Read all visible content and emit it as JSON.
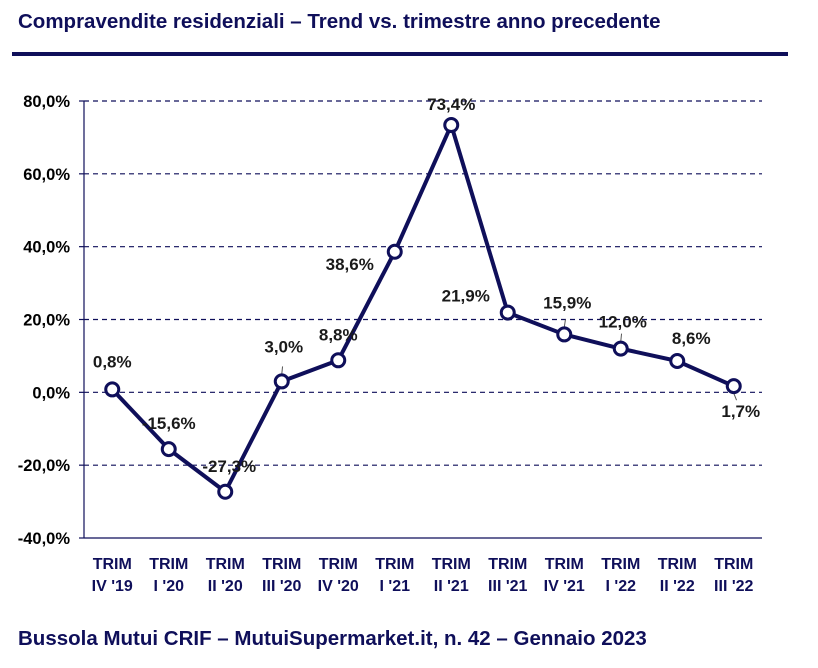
{
  "header": {
    "title": "Compravendite residenziali – Trend vs. trimestre anno precedente"
  },
  "footer": {
    "text": "Bussola Mutui CRIF – MutuiSupermarket.it, n. 42 – Gennaio 2023"
  },
  "colors": {
    "line": "#0f0f5a",
    "grid": "#0f0f5a",
    "marker_fill": "#ffffff",
    "text": "#0f0f5a"
  },
  "chart_data": {
    "type": "line",
    "title": "",
    "xlabel": "",
    "ylabel": "",
    "categories": [
      [
        "TRIM",
        "IV '19"
      ],
      [
        "TRIM",
        "I '20"
      ],
      [
        "TRIM",
        "II '20"
      ],
      [
        "TRIM",
        "III '20"
      ],
      [
        "TRIM",
        "IV '20"
      ],
      [
        "TRIM",
        "I '21"
      ],
      [
        "TRIM",
        "II '21"
      ],
      [
        "TRIM",
        "III '21"
      ],
      [
        "TRIM",
        "IV '21"
      ],
      [
        "TRIM",
        "I '22"
      ],
      [
        "TRIM",
        "II '22"
      ],
      [
        "TRIM",
        "III '22"
      ]
    ],
    "values": [
      0.8,
      -15.6,
      -27.3,
      3.0,
      8.8,
      38.6,
      73.4,
      21.9,
      15.9,
      12.0,
      8.6,
      1.7
    ],
    "data_labels": [
      "0,8%",
      "-15,6%",
      "-27,3%",
      "3,0%",
      "8,8%",
      "38,6%",
      "73,4%",
      "21,9%",
      "15,9%",
      "12,0%",
      "8,6%",
      "1,7%"
    ],
    "ylim": [
      -40,
      80
    ],
    "yticks": [
      80,
      60,
      40,
      20,
      0,
      -20,
      -40
    ],
    "ytick_labels": [
      "80,0%",
      "60,0%",
      "40,0%",
      "20,0%",
      "0,0%",
      "-20,0%",
      "-40,0%"
    ],
    "grid": true,
    "legend": "none"
  }
}
